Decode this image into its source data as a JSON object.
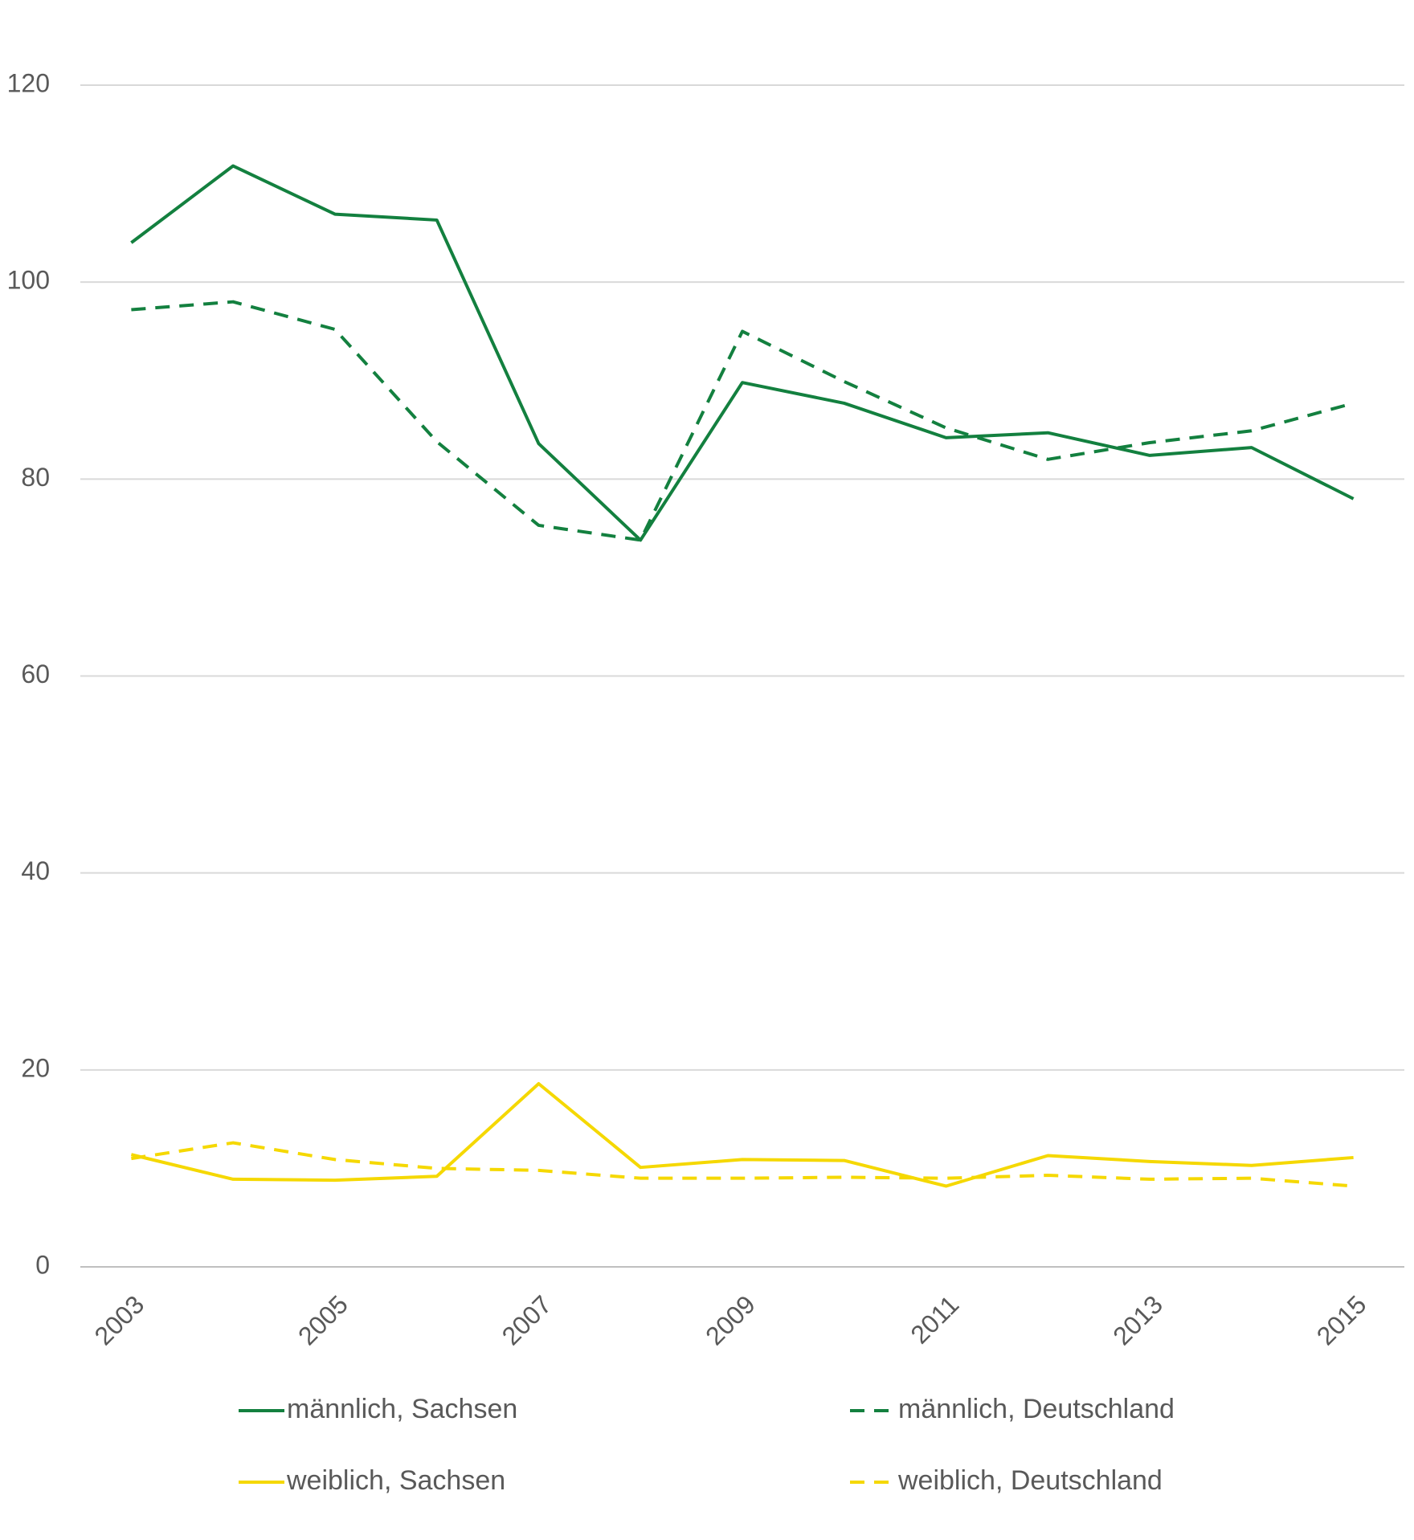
{
  "chart_data": {
    "type": "line",
    "x": [
      2003,
      2004,
      2005,
      2006,
      2007,
      2008,
      2009,
      2010,
      2011,
      2012,
      2013,
      2014,
      2015
    ],
    "xlim": [
      2002.5,
      2015.5
    ],
    "xticks": [
      2003,
      2005,
      2007,
      2009,
      2011,
      2013,
      2015
    ],
    "ylim": [
      0,
      120
    ],
    "yticks": [
      0,
      20,
      40,
      60,
      80,
      100,
      120
    ],
    "grid": true,
    "legend": "bottom",
    "series": [
      {
        "name": "männlich, Sachsen",
        "color": "#13803f",
        "style": "solid",
        "values": [
          104.0,
          111.8,
          106.9,
          106.3,
          83.6,
          73.8,
          89.8,
          87.7,
          84.2,
          84.7,
          82.4,
          83.2,
          78.0
        ]
      },
      {
        "name": "männlich, Deutschland",
        "color": "#13803f",
        "style": "dashed",
        "values": [
          97.2,
          98.0,
          95.2,
          83.8,
          75.3,
          73.8,
          95.0,
          89.9,
          85.2,
          82.0,
          83.7,
          84.9,
          87.7
        ]
      },
      {
        "name": "weiblich, Sachsen",
        "color": "#f5d800",
        "style": "solid",
        "values": [
          11.4,
          8.9,
          8.8,
          9.2,
          18.6,
          10.1,
          10.9,
          10.8,
          8.2,
          11.3,
          10.7,
          10.3,
          11.1
        ]
      },
      {
        "name": "weiblich, Deutschland",
        "color": "#f5d800",
        "style": "dashed",
        "values": [
          11.0,
          12.6,
          10.9,
          10.0,
          9.8,
          9.0,
          9.0,
          9.1,
          9.0,
          9.3,
          8.9,
          9.0,
          8.2
        ]
      }
    ]
  }
}
